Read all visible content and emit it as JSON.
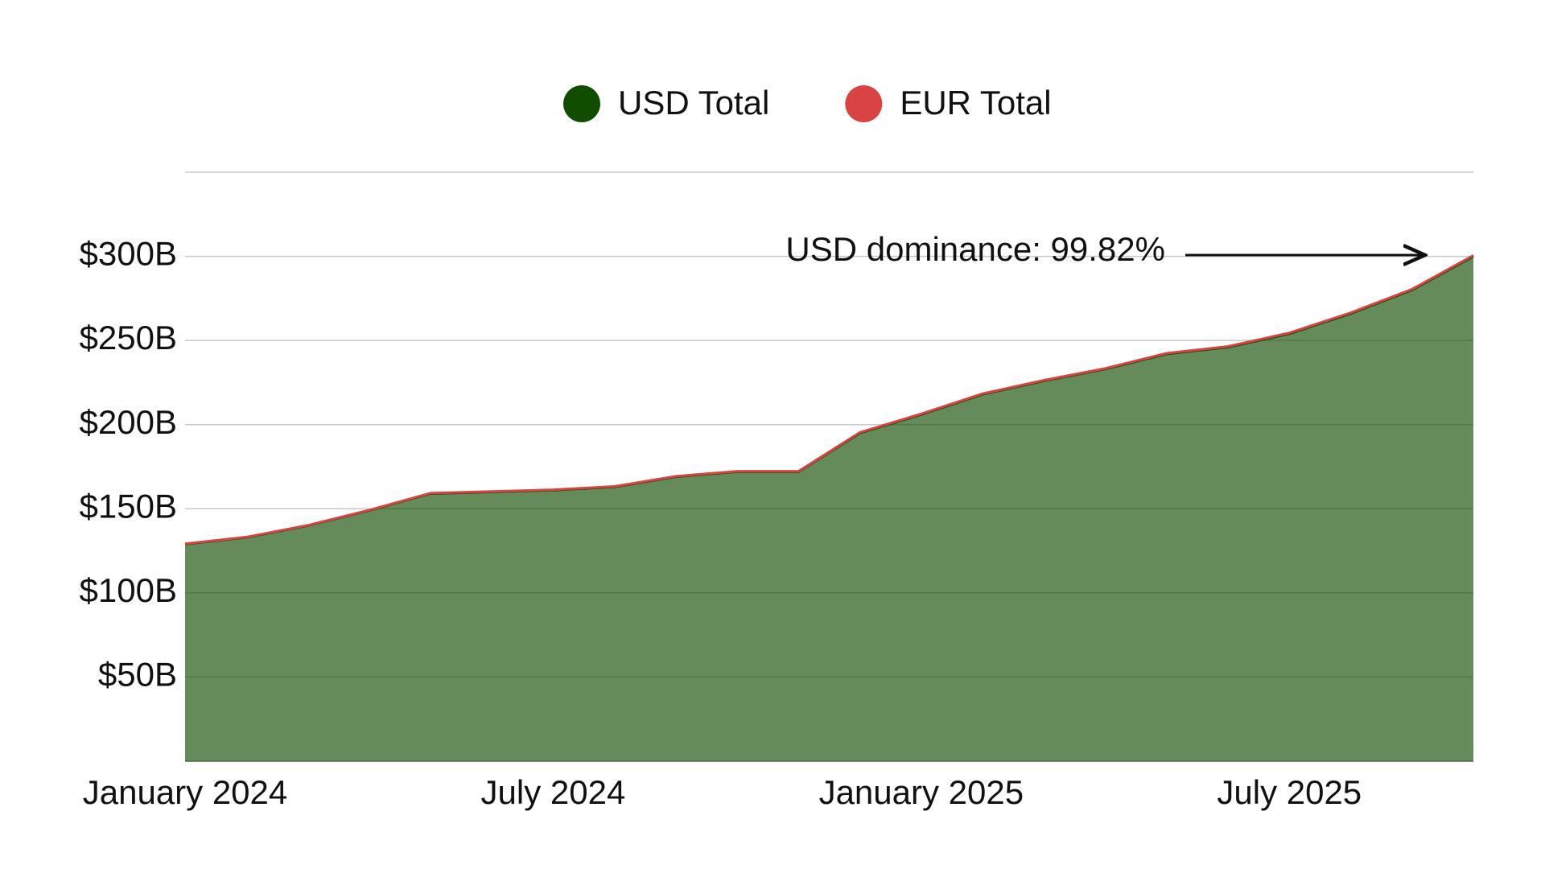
{
  "chart_data": {
    "type": "stacked_area",
    "x": [
      "2024-01",
      "2024-02",
      "2024-03",
      "2024-04",
      "2024-05",
      "2024-06",
      "2024-07",
      "2024-08",
      "2024-09",
      "2024-10",
      "2024-11",
      "2024-12",
      "2025-01",
      "2025-02",
      "2025-03",
      "2025-04",
      "2025-05",
      "2025-06",
      "2025-07",
      "2025-08",
      "2025-09",
      "2025-10"
    ],
    "series": [
      {
        "name": "USD Total",
        "color": "#114d00",
        "values": [
          129,
          133,
          140,
          149,
          159,
          160,
          161,
          163,
          169,
          172,
          172,
          195,
          206,
          218,
          226,
          233,
          242,
          246,
          254,
          266,
          280,
          300
        ]
      },
      {
        "name": "EUR Total",
        "color": "#d94343",
        "values": [
          0.2,
          0.2,
          0.2,
          0.2,
          0.3,
          0.3,
          0.3,
          0.3,
          0.3,
          0.3,
          0.3,
          0.4,
          0.4,
          0.4,
          0.4,
          0.4,
          0.4,
          0.5,
          0.5,
          0.5,
          0.5,
          0.54
        ]
      }
    ],
    "xlim": [
      "2024-01",
      "2025-10"
    ],
    "xticks": [
      {
        "value": "2024-01",
        "label": "January 2024"
      },
      {
        "value": "2024-07",
        "label": "July 2024"
      },
      {
        "value": "2025-01",
        "label": "January 2025"
      },
      {
        "value": "2025-07",
        "label": "July 2025"
      }
    ],
    "ylim": [
      0,
      350
    ],
    "yticks": [
      {
        "value": 50,
        "label": "$50B"
      },
      {
        "value": 100,
        "label": "$100B"
      },
      {
        "value": 150,
        "label": "$150B"
      },
      {
        "value": 200,
        "label": "$200B"
      },
      {
        "value": 250,
        "label": "$250B"
      },
      {
        "value": 300,
        "label": "$300B"
      }
    ],
    "annotation": "USD dominance: 99.82%",
    "grid": true
  }
}
